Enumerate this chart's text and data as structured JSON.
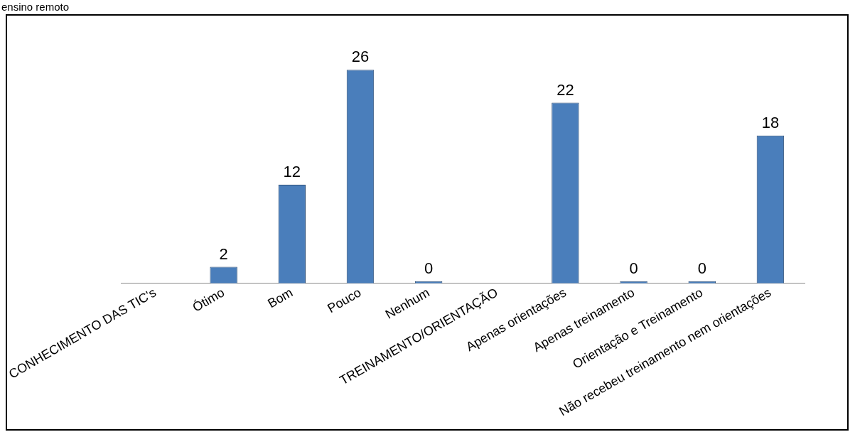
{
  "chart_data": {
    "type": "bar",
    "title": "ensino remoto",
    "categories": [
      "CONHECIMENTO DAS TIC's",
      "Ótimo",
      "Bom",
      "Pouco",
      "Nenhum",
      "TREINAMENTO/ORIENTAÇÃO",
      "Apenas orientações",
      "Apenas treinamento",
      "Orientação e Treinamento",
      "Não recebeu treinamento nem orientações"
    ],
    "values": [
      null,
      2,
      12,
      26,
      0,
      null,
      22,
      0,
      0,
      18
    ],
    "color": "#4a7ebb",
    "data_labels": true,
    "grid": false,
    "legend": false,
    "tick_labels": "x"
  }
}
